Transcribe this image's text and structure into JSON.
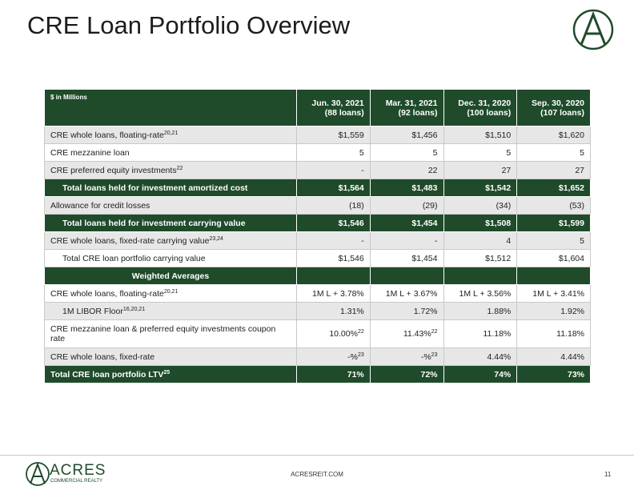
{
  "header": {
    "title": "CRE Loan Portfolio Overview"
  },
  "table": {
    "corner": "$ in Millions",
    "columns": [
      {
        "date": "Jun. 30, 2021",
        "count": "(88 loans)"
      },
      {
        "date": "Mar. 31, 2021",
        "count": "(92 loans)"
      },
      {
        "date": "Dec. 31, 2020",
        "count": "(100 loans)"
      },
      {
        "date": "Sep. 30, 2020",
        "count": "(107 loans)"
      }
    ],
    "rows": [
      {
        "label": "CRE whole loans, floating-rate",
        "note": "20,21",
        "fill": "gray",
        "cells": [
          "$1,559",
          "$1,456",
          "$1,510",
          "$1,620"
        ]
      },
      {
        "label": "CRE mezzanine loan",
        "fill": "white",
        "cells": [
          "5",
          "5",
          "5",
          "5"
        ]
      },
      {
        "label": "CRE preferred equity investments",
        "note": "22",
        "fill": "gray",
        "cells": [
          "-",
          "22",
          "27",
          "27"
        ]
      },
      {
        "label": "Total loans held for investment amortized cost",
        "fill": "green",
        "indent": true,
        "cells": [
          "$1,564",
          "$1,483",
          "$1,542",
          "$1,652"
        ]
      },
      {
        "label": "Allowance for credit losses",
        "fill": "gray",
        "cells": [
          "(18)",
          "(29)",
          "(34)",
          "(53)"
        ]
      },
      {
        "label": "Total loans held for investment carrying value",
        "fill": "green",
        "indent": true,
        "cells": [
          "$1,546",
          "$1,454",
          "$1,508",
          "$1,599"
        ]
      },
      {
        "label": "CRE whole loans, fixed-rate carrying value",
        "note": "23,24",
        "fill": "gray",
        "cells": [
          "-",
          "-",
          "4",
          "5"
        ]
      },
      {
        "label": "Total CRE loan portfolio carrying value",
        "fill": "white",
        "indent": true,
        "cells": [
          "$1,546",
          "$1,454",
          "$1,512",
          "$1,604"
        ]
      },
      {
        "label": "Weighted Averages",
        "fill": "green",
        "center": true
      },
      {
        "label": "CRE whole loans, floating-rate",
        "note": "20,21",
        "fill": "white",
        "cells": [
          "1M L + 3.78%",
          "1M L + 3.67%",
          "1M L + 3.56%",
          "1M L + 3.41%"
        ]
      },
      {
        "label": "1M LIBOR Floor",
        "note": "16,20,21",
        "fill": "gray",
        "indent": true,
        "cells": [
          "1.31%",
          "1.72%",
          "1.88%",
          "1.92%"
        ]
      },
      {
        "label": "CRE mezzanine loan & preferred equity investments coupon rate",
        "fill": "white",
        "cells": [
          {
            "text": "10.00%",
            "note": "22"
          },
          {
            "text": "11.43%",
            "note": "22"
          },
          "11.18%",
          "11.18%"
        ]
      },
      {
        "label": "CRE whole loans, fixed-rate",
        "fill": "gray",
        "cells": [
          {
            "text": "-%",
            "note": "23"
          },
          {
            "text": "-%",
            "note": "23"
          },
          "4.44%",
          "4.44%"
        ]
      },
      {
        "label": "Total CRE loan portfolio LTV",
        "note": "25",
        "fill": "green",
        "cells": [
          "71%",
          "72%",
          "74%",
          "73%"
        ]
      }
    ]
  },
  "footer": {
    "logo": "ACRES",
    "logo_sub": "COMMERCIAL REALTY",
    "website": "ACRESREIT.COM",
    "page": "11"
  }
}
